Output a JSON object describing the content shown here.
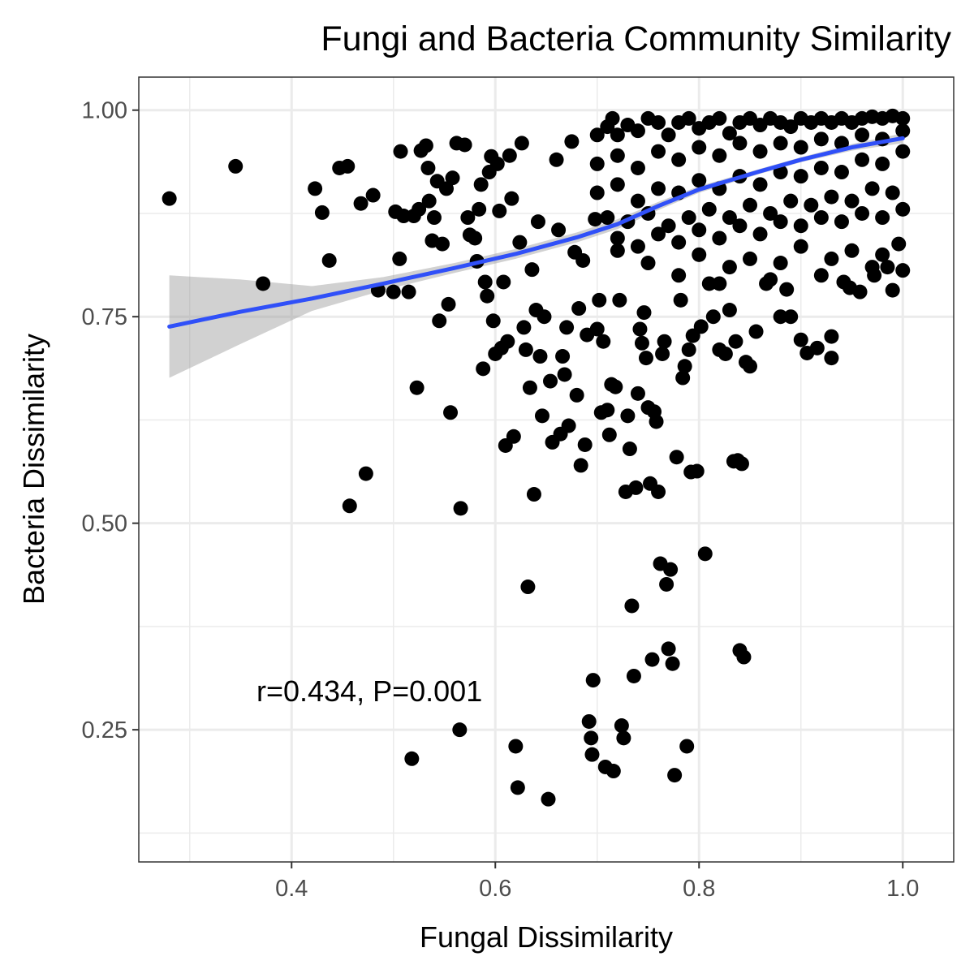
{
  "chart_data": {
    "type": "scatter",
    "title": "Fungi and Bacteria Community Similarity",
    "xlabel": "Fungal Dissimilarity",
    "ylabel": "Bacteria Dissimilarity",
    "xlim": [
      0.25,
      1.05
    ],
    "ylim": [
      0.09,
      1.04
    ],
    "x_ticks": [
      0.4,
      0.6,
      0.8,
      1.0
    ],
    "x_tick_labels": [
      "0.4",
      "0.6",
      "0.8",
      "1.0"
    ],
    "y_ticks": [
      0.25,
      0.5,
      0.75,
      1.0
    ],
    "y_tick_labels": [
      "0.25",
      "0.50",
      "0.75",
      "1.00"
    ],
    "grid": true,
    "annotation": "r=0.434, P=0.001",
    "colors": {
      "points": "#000000",
      "smooth_line": "#3050F8",
      "ci_band": "#999999",
      "grid": "#EBEBEB",
      "panel_border": "#333333"
    },
    "points": [
      [
        0.28,
        0.893
      ],
      [
        0.345,
        0.932
      ],
      [
        0.372,
        0.79
      ],
      [
        0.423,
        0.905
      ],
      [
        0.43,
        0.876
      ],
      [
        0.437,
        0.818
      ],
      [
        0.447,
        0.93
      ],
      [
        0.455,
        0.932
      ],
      [
        0.457,
        0.521
      ],
      [
        0.468,
        0.887
      ],
      [
        0.473,
        0.56
      ],
      [
        0.48,
        0.897
      ],
      [
        0.485,
        0.782
      ],
      [
        0.5,
        0.78
      ],
      [
        0.502,
        0.877
      ],
      [
        0.506,
        0.82
      ],
      [
        0.507,
        0.95
      ],
      [
        0.51,
        0.872
      ],
      [
        0.515,
        0.78
      ],
      [
        0.518,
        0.215
      ],
      [
        0.52,
        0.872
      ],
      [
        0.523,
        0.664
      ],
      [
        0.525,
        0.88
      ],
      [
        0.527,
        0.951
      ],
      [
        0.532,
        0.957
      ],
      [
        0.534,
        0.93
      ],
      [
        0.535,
        0.89
      ],
      [
        0.538,
        0.842
      ],
      [
        0.54,
        0.87
      ],
      [
        0.543,
        0.914
      ],
      [
        0.545,
        0.745
      ],
      [
        0.548,
        0.838
      ],
      [
        0.552,
        0.905
      ],
      [
        0.554,
        0.765
      ],
      [
        0.556,
        0.634
      ],
      [
        0.558,
        0.918
      ],
      [
        0.562,
        0.96
      ],
      [
        0.565,
        0.25
      ],
      [
        0.566,
        0.518
      ],
      [
        0.57,
        0.958
      ],
      [
        0.573,
        0.87
      ],
      [
        0.575,
        0.849
      ],
      [
        0.58,
        0.845
      ],
      [
        0.582,
        0.817
      ],
      [
        0.584,
        0.88
      ],
      [
        0.586,
        0.91
      ],
      [
        0.588,
        0.687
      ],
      [
        0.59,
        0.792
      ],
      [
        0.592,
        0.775
      ],
      [
        0.594,
        0.925
      ],
      [
        0.596,
        0.944
      ],
      [
        0.598,
        0.745
      ],
      [
        0.6,
        0.705
      ],
      [
        0.602,
        0.935
      ],
      [
        0.604,
        0.878
      ],
      [
        0.606,
        0.712
      ],
      [
        0.608,
        0.792
      ],
      [
        0.61,
        0.594
      ],
      [
        0.612,
        0.72
      ],
      [
        0.614,
        0.945
      ],
      [
        0.616,
        0.893
      ],
      [
        0.618,
        0.605
      ],
      [
        0.62,
        0.23
      ],
      [
        0.622,
        0.18
      ],
      [
        0.624,
        0.84
      ],
      [
        0.626,
        0.96
      ],
      [
        0.628,
        0.737
      ],
      [
        0.63,
        0.71
      ],
      [
        0.632,
        0.423
      ],
      [
        0.634,
        0.664
      ],
      [
        0.636,
        0.807
      ],
      [
        0.638,
        0.535
      ],
      [
        0.64,
        0.758
      ],
      [
        0.642,
        0.865
      ],
      [
        0.644,
        0.702
      ],
      [
        0.646,
        0.63
      ],
      [
        0.648,
        0.75
      ],
      [
        0.652,
        0.166
      ],
      [
        0.654,
        0.672
      ],
      [
        0.656,
        0.598
      ],
      [
        0.66,
        0.94
      ],
      [
        0.662,
        0.855
      ],
      [
        0.664,
        0.608
      ],
      [
        0.666,
        0.702
      ],
      [
        0.668,
        0.68
      ],
      [
        0.67,
        0.737
      ],
      [
        0.672,
        0.618
      ],
      [
        0.675,
        0.962
      ],
      [
        0.678,
        0.828
      ],
      [
        0.68,
        0.655
      ],
      [
        0.682,
        0.76
      ],
      [
        0.684,
        0.57
      ],
      [
        0.686,
        0.818
      ],
      [
        0.688,
        0.595
      ],
      [
        0.69,
        0.728
      ],
      [
        0.692,
        0.26
      ],
      [
        0.694,
        0.24
      ],
      [
        0.695,
        0.22
      ],
      [
        0.696,
        0.31
      ],
      [
        0.698,
        0.868
      ],
      [
        0.7,
        0.735
      ],
      [
        0.702,
        0.77
      ],
      [
        0.704,
        0.634
      ],
      [
        0.706,
        0.72
      ],
      [
        0.708,
        0.205
      ],
      [
        0.71,
        0.637
      ],
      [
        0.712,
        0.607
      ],
      [
        0.714,
        0.668
      ],
      [
        0.716,
        0.2
      ],
      [
        0.718,
        0.665
      ],
      [
        0.72,
        0.83
      ],
      [
        0.722,
        0.77
      ],
      [
        0.724,
        0.255
      ],
      [
        0.726,
        0.24
      ],
      [
        0.728,
        0.538
      ],
      [
        0.73,
        0.63
      ],
      [
        0.732,
        0.59
      ],
      [
        0.734,
        0.4
      ],
      [
        0.736,
        0.315
      ],
      [
        0.738,
        0.543
      ],
      [
        0.74,
        0.657
      ],
      [
        0.742,
        0.735
      ],
      [
        0.744,
        0.718
      ],
      [
        0.746,
        0.755
      ],
      [
        0.748,
        0.7
      ],
      [
        0.75,
        0.64
      ],
      [
        0.752,
        0.548
      ],
      [
        0.754,
        0.335
      ],
      [
        0.756,
        0.635
      ],
      [
        0.758,
        0.623
      ],
      [
        0.76,
        0.538
      ],
      [
        0.762,
        0.451
      ],
      [
        0.764,
        0.705
      ],
      [
        0.766,
        0.72
      ],
      [
        0.768,
        0.426
      ],
      [
        0.77,
        0.348
      ],
      [
        0.772,
        0.444
      ],
      [
        0.774,
        0.33
      ],
      [
        0.776,
        0.195
      ],
      [
        0.778,
        0.58
      ],
      [
        0.782,
        0.77
      ],
      [
        0.784,
        0.676
      ],
      [
        0.786,
        0.69
      ],
      [
        0.788,
        0.23
      ],
      [
        0.79,
        0.71
      ],
      [
        0.792,
        0.562
      ],
      [
        0.794,
        0.727
      ],
      [
        0.798,
        0.563
      ],
      [
        0.802,
        0.738
      ],
      [
        0.806,
        0.463
      ],
      [
        0.81,
        0.79
      ],
      [
        0.814,
        0.75
      ],
      [
        0.82,
        0.71
      ],
      [
        0.826,
        0.705
      ],
      [
        0.83,
        0.758
      ],
      [
        0.834,
        0.575
      ],
      [
        0.836,
        0.72
      ],
      [
        0.838,
        0.576
      ],
      [
        0.84,
        0.346
      ],
      [
        0.842,
        0.572
      ],
      [
        0.844,
        0.338
      ],
      [
        0.846,
        0.695
      ],
      [
        0.85,
        0.69
      ],
      [
        0.856,
        0.732
      ],
      [
        0.866,
        0.79
      ],
      [
        0.88,
        0.75
      ],
      [
        0.886,
        0.783
      ],
      [
        0.89,
        0.75
      ],
      [
        0.9,
        0.722
      ],
      [
        0.906,
        0.706
      ],
      [
        0.916,
        0.712
      ],
      [
        0.93,
        0.7
      ],
      [
        0.93,
        0.726
      ],
      [
        0.942,
        0.792
      ],
      [
        0.948,
        0.785
      ],
      [
        0.958,
        0.78
      ],
      [
        0.972,
        0.8
      ],
      [
        0.985,
        0.81
      ],
      [
        0.99,
        0.782
      ],
      [
        0.996,
        0.838
      ],
      [
        1.0,
        0.806
      ],
      [
        0.7,
        0.97
      ],
      [
        0.71,
        0.98
      ],
      [
        0.715,
        0.99
      ],
      [
        0.72,
        0.97
      ],
      [
        0.73,
        0.982
      ],
      [
        0.74,
        0.975
      ],
      [
        0.75,
        0.99
      ],
      [
        0.76,
        0.985
      ],
      [
        0.77,
        0.97
      ],
      [
        0.78,
        0.985
      ],
      [
        0.79,
        0.99
      ],
      [
        0.8,
        0.978
      ],
      [
        0.81,
        0.985
      ],
      [
        0.82,
        0.99
      ],
      [
        0.83,
        0.972
      ],
      [
        0.84,
        0.985
      ],
      [
        0.85,
        0.99
      ],
      [
        0.86,
        0.982
      ],
      [
        0.87,
        0.99
      ],
      [
        0.88,
        0.985
      ],
      [
        0.89,
        0.98
      ],
      [
        0.9,
        0.99
      ],
      [
        0.91,
        0.985
      ],
      [
        0.92,
        0.99
      ],
      [
        0.93,
        0.985
      ],
      [
        0.94,
        0.99
      ],
      [
        0.95,
        0.985
      ],
      [
        0.96,
        0.99
      ],
      [
        0.97,
        0.992
      ],
      [
        0.98,
        0.99
      ],
      [
        0.99,
        0.993
      ],
      [
        1.0,
        0.99
      ],
      [
        0.7,
        0.935
      ],
      [
        0.72,
        0.945
      ],
      [
        0.74,
        0.93
      ],
      [
        0.76,
        0.95
      ],
      [
        0.78,
        0.94
      ],
      [
        0.8,
        0.955
      ],
      [
        0.82,
        0.945
      ],
      [
        0.84,
        0.96
      ],
      [
        0.86,
        0.95
      ],
      [
        0.88,
        0.96
      ],
      [
        0.9,
        0.955
      ],
      [
        0.92,
        0.965
      ],
      [
        0.94,
        0.96
      ],
      [
        0.96,
        0.97
      ],
      [
        0.98,
        0.965
      ],
      [
        1.0,
        0.975
      ],
      [
        0.7,
        0.9
      ],
      [
        0.72,
        0.91
      ],
      [
        0.74,
        0.89
      ],
      [
        0.76,
        0.905
      ],
      [
        0.78,
        0.9
      ],
      [
        0.8,
        0.915
      ],
      [
        0.82,
        0.905
      ],
      [
        0.84,
        0.92
      ],
      [
        0.86,
        0.91
      ],
      [
        0.88,
        0.925
      ],
      [
        0.9,
        0.92
      ],
      [
        0.92,
        0.93
      ],
      [
        0.94,
        0.925
      ],
      [
        0.96,
        0.94
      ],
      [
        0.98,
        0.935
      ],
      [
        1.0,
        0.95
      ],
      [
        0.71,
        0.87
      ],
      [
        0.73,
        0.865
      ],
      [
        0.75,
        0.875
      ],
      [
        0.77,
        0.86
      ],
      [
        0.79,
        0.87
      ],
      [
        0.81,
        0.88
      ],
      [
        0.83,
        0.87
      ],
      [
        0.85,
        0.885
      ],
      [
        0.87,
        0.875
      ],
      [
        0.89,
        0.89
      ],
      [
        0.91,
        0.885
      ],
      [
        0.93,
        0.895
      ],
      [
        0.95,
        0.89
      ],
      [
        0.97,
        0.905
      ],
      [
        0.99,
        0.9
      ],
      [
        0.72,
        0.845
      ],
      [
        0.74,
        0.835
      ],
      [
        0.76,
        0.85
      ],
      [
        0.78,
        0.84
      ],
      [
        0.8,
        0.855
      ],
      [
        0.82,
        0.845
      ],
      [
        0.84,
        0.86
      ],
      [
        0.86,
        0.85
      ],
      [
        0.88,
        0.865
      ],
      [
        0.9,
        0.86
      ],
      [
        0.92,
        0.87
      ],
      [
        0.94,
        0.865
      ],
      [
        0.96,
        0.875
      ],
      [
        0.98,
        0.87
      ],
      [
        1.0,
        0.88
      ],
      [
        0.75,
        0.815
      ],
      [
        0.8,
        0.825
      ],
      [
        0.85,
        0.82
      ],
      [
        0.9,
        0.835
      ],
      [
        0.95,
        0.83
      ],
      [
        0.78,
        0.8
      ],
      [
        0.83,
        0.81
      ],
      [
        0.88,
        0.815
      ],
      [
        0.93,
        0.82
      ],
      [
        0.98,
        0.825
      ],
      [
        0.82,
        0.79
      ],
      [
        0.87,
        0.795
      ],
      [
        0.92,
        0.8
      ],
      [
        0.97,
        0.81
      ]
    ],
    "smooth_line": {
      "x": [
        0.28,
        0.35,
        0.42,
        0.49,
        0.56,
        0.62,
        0.68,
        0.72,
        0.76,
        0.8,
        0.86,
        0.9,
        0.95,
        1.0
      ],
      "y": [
        0.738,
        0.756,
        0.772,
        0.79,
        0.809,
        0.826,
        0.846,
        0.862,
        0.884,
        0.904,
        0.926,
        0.94,
        0.955,
        0.966
      ]
    },
    "ci_band": {
      "x": [
        0.28,
        0.35,
        0.42,
        0.49,
        0.56,
        0.62,
        0.68,
        0.72,
        0.76,
        0.8,
        0.86,
        0.9,
        0.95,
        1.0
      ],
      "lower": [
        0.676,
        0.717,
        0.757,
        0.782,
        0.803,
        0.82,
        0.84,
        0.856,
        0.879,
        0.9,
        0.923,
        0.937,
        0.951,
        0.96
      ],
      "upper": [
        0.8,
        0.795,
        0.787,
        0.798,
        0.815,
        0.832,
        0.852,
        0.868,
        0.889,
        0.908,
        0.929,
        0.943,
        0.959,
        0.972
      ]
    }
  }
}
